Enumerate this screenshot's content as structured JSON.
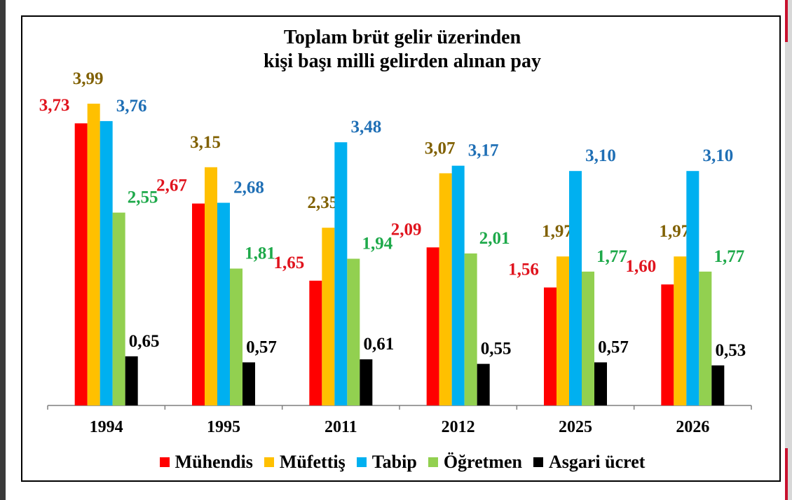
{
  "chart_data": {
    "type": "bar",
    "title": "Toplam brüt gelir üzerinden",
    "subtitle": "kişi başı milli gelirden alınan pay",
    "categories": [
      "1994",
      "1995",
      "2011",
      "2012",
      "2025",
      "2026"
    ],
    "series": [
      {
        "name": "Mühendis",
        "color": "#ff0000",
        "label_color": "#e0141e",
        "values": [
          3.73,
          2.67,
          1.65,
          2.09,
          1.56,
          1.6
        ],
        "labels": [
          "3,73",
          "2,67",
          "1,65",
          "2,09",
          "1,56",
          "1,60"
        ]
      },
      {
        "name": "Müfettiş",
        "color": "#ffc000",
        "label_color": "#806000",
        "values": [
          3.99,
          3.15,
          2.35,
          3.07,
          1.97,
          1.97
        ],
        "labels": [
          "3,99",
          "3,15",
          "2,35",
          "3,07",
          "1,97",
          "1,97"
        ]
      },
      {
        "name": "Tabip",
        "color": "#00b0f0",
        "label_color": "#1f6fb5",
        "values": [
          3.76,
          2.68,
          3.48,
          3.17,
          3.1,
          3.1
        ],
        "labels": [
          "3,76",
          "2,68",
          "3,48",
          "3,17",
          "3,10",
          "3,10"
        ]
      },
      {
        "name": "Öğretmen",
        "color": "#92d050",
        "label_color": "#1ea94a",
        "values": [
          2.55,
          1.81,
          1.94,
          2.01,
          1.77,
          1.77
        ],
        "labels": [
          "2,55",
          "1,81",
          "1,94",
          "2,01",
          "1,77",
          "1,77"
        ]
      },
      {
        "name": "Asgari ücret",
        "color": "#000000",
        "label_color": "#000000",
        "values": [
          0.65,
          0.57,
          0.61,
          0.55,
          0.57,
          0.53
        ],
        "labels": [
          "0,65",
          "0,57",
          "0,61",
          "0,55",
          "0,57",
          "0,53"
        ]
      }
    ],
    "ylim": [
      0,
      4.1
    ],
    "grid": false,
    "legend_position": "bottom"
  }
}
